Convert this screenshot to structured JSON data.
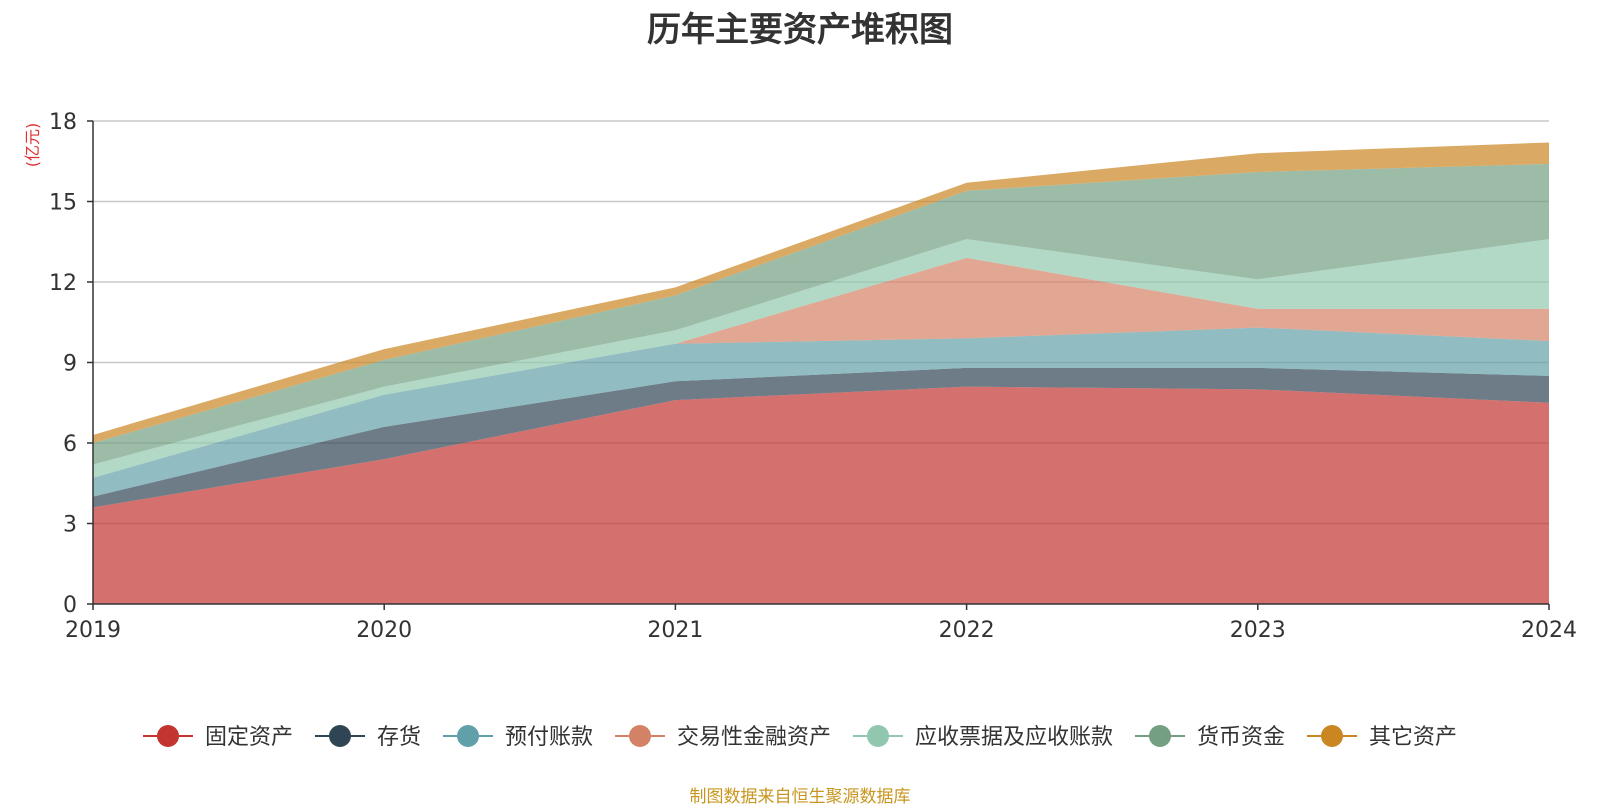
{
  "chart_data": {
    "type": "area",
    "stacked": true,
    "title": "历年主要资产堆积图",
    "unit_label": "(亿元)",
    "x": [
      "2019",
      "2020",
      "2021",
      "2022",
      "2023",
      "2024"
    ],
    "ylim": [
      0,
      18
    ],
    "yticks": [
      0,
      3,
      6,
      9,
      12,
      15,
      18
    ],
    "grid": true,
    "legend_position": "bottom",
    "series": [
      {
        "name": "固定资产",
        "color": "#c23531",
        "values": [
          3.6,
          5.4,
          7.6,
          8.1,
          8.0,
          7.5
        ]
      },
      {
        "name": "存货",
        "color": "#2f4554",
        "values": [
          0.4,
          1.2,
          0.7,
          0.7,
          0.8,
          1.0
        ]
      },
      {
        "name": "预付账款",
        "color": "#61a0a8",
        "values": [
          0.7,
          1.2,
          1.4,
          1.1,
          1.5,
          1.3
        ]
      },
      {
        "name": "交易性金融资产",
        "color": "#d48265",
        "values": [
          0.0,
          0.0,
          0.0,
          3.0,
          0.7,
          1.2
        ]
      },
      {
        "name": "应收票据及应收账款",
        "color": "#91c7ae",
        "values": [
          0.5,
          0.3,
          0.5,
          0.7,
          1.1,
          2.6
        ]
      },
      {
        "name": "货币资金",
        "color": "#749f83",
        "values": [
          0.8,
          1.0,
          1.3,
          1.8,
          4.0,
          2.8
        ]
      },
      {
        "name": "其它资产",
        "color": "#ca8622",
        "values": [
          0.3,
          0.4,
          0.3,
          0.3,
          0.7,
          0.8
        ]
      }
    ]
  },
  "footer": "制图数据来自恒生聚源数据库"
}
